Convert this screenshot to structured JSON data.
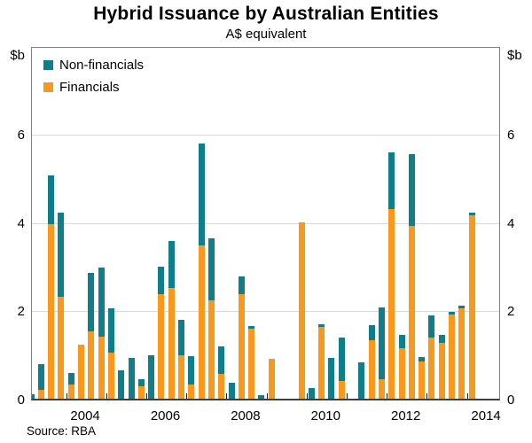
{
  "title": "Hybrid Issuance by Australian Entities",
  "subtitle": "A$ equivalent",
  "source": "Source: RBA",
  "axis": {
    "unit_left": "$b",
    "unit_right": "$b",
    "y_ticks": [
      0,
      2,
      4,
      6
    ],
    "x_labels": [
      "2004",
      "2006",
      "2008",
      "2010",
      "2012",
      "2014"
    ]
  },
  "legend": [
    {
      "label": "Non-financials",
      "color": "#0f7d8a"
    },
    {
      "label": "Financials",
      "color": "#f8991d"
    }
  ],
  "chart_data": {
    "type": "bar",
    "stacked": true,
    "title": "Hybrid Issuance by Australian Entities",
    "subtitle": "A$ equivalent",
    "ylabel": "$b",
    "ylim": [
      0,
      8
    ],
    "y_ticks": [
      0,
      2,
      4,
      6
    ],
    "grid": "horizontal",
    "legend_position": "top-left",
    "x_axis_years": [
      2003,
      2014
    ],
    "x_label_years": [
      2004,
      2006,
      2008,
      2010,
      2012,
      2014
    ],
    "x": [
      "2003Q1",
      "2003Q2",
      "2003Q3",
      "2003Q4",
      "2004Q1",
      "2004Q2",
      "2004Q3",
      "2004Q4",
      "2005Q1",
      "2005Q2",
      "2005Q3",
      "2005Q4",
      "2006Q1",
      "2006Q2",
      "2006Q3",
      "2006Q4",
      "2007Q1",
      "2007Q2",
      "2007Q3",
      "2007Q4",
      "2008Q1",
      "2008Q2",
      "2008Q3",
      "2008Q4",
      "2009Q1",
      "2009Q2",
      "2009Q3",
      "2009Q4",
      "2010Q1",
      "2010Q2",
      "2010Q3",
      "2010Q4",
      "2011Q1",
      "2011Q2",
      "2011Q3",
      "2011Q4",
      "2012Q1",
      "2012Q2",
      "2012Q3",
      "2012Q4",
      "2013Q1",
      "2013Q2",
      "2013Q3",
      "2013Q4",
      "2014Q1"
    ],
    "series": [
      {
        "name": "Financials",
        "color": "#f8991d",
        "values": [
          0,
          0.2,
          3.95,
          2.3,
          0.32,
          1.22,
          1.52,
          1.4,
          1.05,
          0,
          0,
          0.28,
          0,
          2.37,
          2.5,
          0.99,
          0.33,
          3.47,
          2.23,
          0.57,
          0,
          2.37,
          1.58,
          0,
          0.9,
          0,
          0,
          4.0,
          0,
          1.62,
          0,
          0.4,
          0,
          0,
          1.32,
          0.45,
          4.3,
          1.15,
          3.92,
          0.85,
          1.39,
          1.27,
          1.9,
          2.04,
          4.15
        ]
      },
      {
        "name": "Non-financials",
        "color": "#0f7d8a",
        "values": [
          0.1,
          0.58,
          1.1,
          1.92,
          0.26,
          0,
          1.33,
          1.57,
          0.99,
          0.64,
          0.93,
          0.17,
          0.98,
          0.61,
          1.07,
          0.8,
          0.64,
          2.31,
          1.4,
          0.62,
          0.37,
          0.4,
          0.06,
          0.08,
          0,
          0,
          0,
          0,
          0.25,
          0.06,
          0.92,
          0.99,
          0,
          0.82,
          0.34,
          1.61,
          1.28,
          0.3,
          1.62,
          0.09,
          0.49,
          0.17,
          0.06,
          0.06,
          0.07
        ]
      }
    ]
  }
}
